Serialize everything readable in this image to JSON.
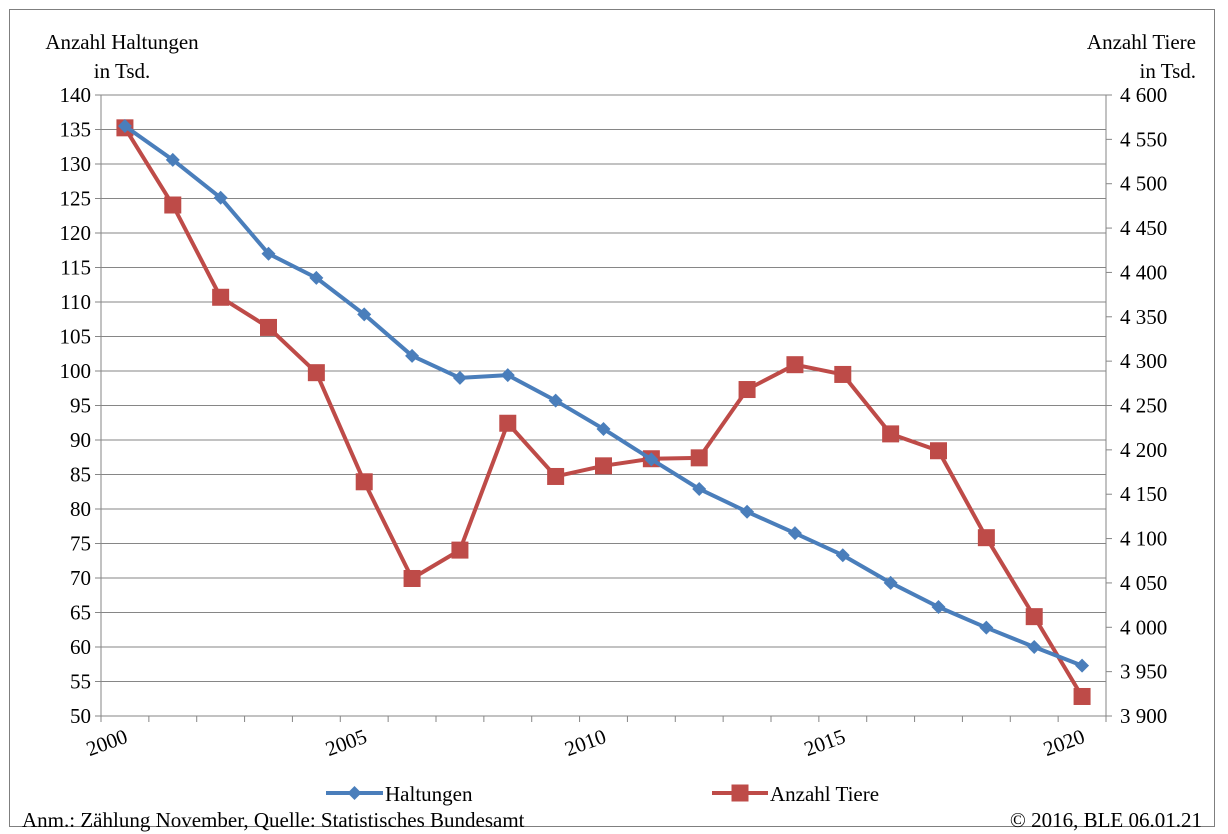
{
  "chart_data": {
    "type": "line",
    "title": "",
    "ylabel_left": [
      "Anzahl Haltungen",
      "in Tsd."
    ],
    "ylabel_right": [
      "Anzahl Tiere",
      "in Tsd."
    ],
    "ylim_left": [
      50,
      140
    ],
    "ylim_right": [
      3900,
      4600
    ],
    "yticks_left": [
      "140",
      "135",
      "130",
      "125",
      "120",
      "115",
      "110",
      "105",
      "100",
      "95",
      "90",
      "85",
      "80",
      "75",
      "70",
      "65",
      "60",
      "55",
      "50"
    ],
    "yticks_right": [
      "4 600",
      "4 550",
      "4 500",
      "4 450",
      "4 400",
      "4 350",
      "4 300",
      "4 250",
      "4 200",
      "4 150",
      "4 100",
      "4 050",
      "4 000",
      "3 950",
      "3 900"
    ],
    "xticks": [
      "2000",
      "2005",
      "2010",
      "2015",
      "2020"
    ],
    "grid": true,
    "legend_position": "bottom",
    "x": [
      2000,
      2001,
      2002,
      2003,
      2004,
      2005,
      2006,
      2007,
      2008,
      2009,
      2010,
      2011,
      2012,
      2013,
      2014,
      2015,
      2016,
      2017,
      2018,
      2019,
      2020
    ],
    "series": [
      {
        "name": "Haltungen",
        "axis": "left",
        "color": "#4a7ebb",
        "marker": "diamond",
        "values": [
          135.5,
          130.6,
          125.1,
          117.0,
          113.5,
          108.2,
          102.2,
          99.0,
          99.4,
          95.7,
          91.6,
          87.2,
          82.9,
          79.6,
          76.5,
          73.3,
          69.3,
          65.8,
          62.8,
          60.0,
          57.3
        ]
      },
      {
        "name": "Anzahl Tiere",
        "axis": "right",
        "color": "#be4b48",
        "marker": "square",
        "values": [
          4563,
          4476,
          4372,
          4338,
          4287,
          4164,
          4055,
          4087,
          4230,
          4170,
          4182,
          4190,
          4191,
          4268,
          4296,
          4285,
          4218,
          4199,
          4101,
          4012,
          3922
        ]
      }
    ]
  },
  "footer": {
    "note": "Anm.: Zählung November, Quelle: Statistisches Bundesamt",
    "copyright": "© 2016, BLE 06.01.21"
  }
}
